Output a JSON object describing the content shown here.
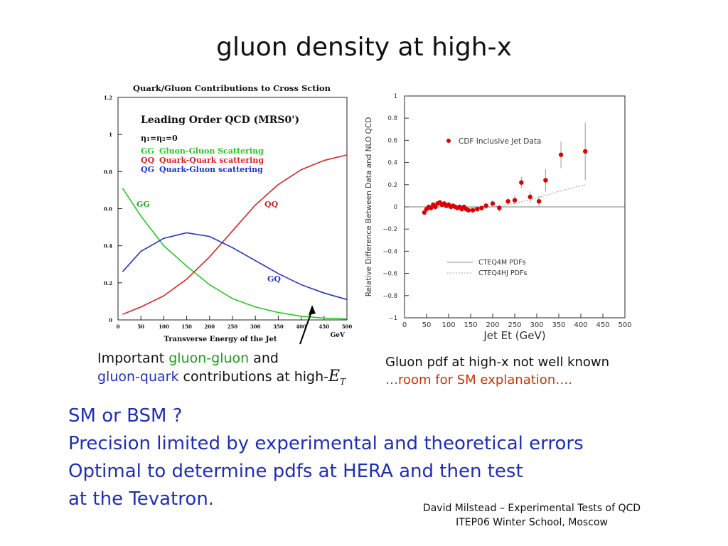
{
  "slide": {
    "title": "gluon density at high-x",
    "left_caption": {
      "part1": "Important ",
      "part2": "gluon-gluon",
      "part3": " and",
      "part4": "gluon-quark",
      "part5": " contributions at high-",
      "part6": "E",
      "part7": "T"
    },
    "right_caption": {
      "line1": "Gluon pdf at high-x not well known",
      "line2": "…room for SM explanation…."
    },
    "body_lines": [
      "SM or BSM ?",
      "Precision limited by experimental and theoretical errors",
      "Optimal to determine pdfs at HERA and then test",
      "at the Tevatron."
    ],
    "footer": {
      "line1": "David Milstead – Experimental Tests of QCD",
      "line2": "ITEP06 Winter School, Moscow"
    },
    "colors": {
      "body_text": "#1f2fb5",
      "gg": "#22cc22",
      "qq": "#dd2222",
      "qg": "#2233cc",
      "cdf_points": "#dd0000",
      "caption_red": "#cc3300"
    }
  },
  "chart_data": [
    {
      "type": "line",
      "title": "Quark/Gluon Contributions to Cross Sction",
      "xlabel": "Transverse Energy of the Jet",
      "xunit": "GeV",
      "xlim": [
        0,
        500
      ],
      "ylim": [
        0,
        1.2
      ],
      "xticks": [
        0,
        50,
        100,
        150,
        200,
        250,
        300,
        350,
        400,
        450,
        500
      ],
      "yticks": [
        0,
        0.2,
        0.4,
        0.6,
        0.8,
        1,
        1.2
      ],
      "ytick_labels": [
        "0",
        "0.2",
        "0.4",
        "0.6",
        "0.8",
        "1",
        "1.2"
      ],
      "inset": {
        "heading": "Leading Order QCD (MRS0')",
        "eta_label": "η₁=η₂=0",
        "legend": [
          {
            "code": "GG",
            "text": "Gluon-Gluon Scattering",
            "color": "#22cc22"
          },
          {
            "code": "QQ",
            "text": "Quark-Quark scattering",
            "color": "#dd2222"
          },
          {
            "code": "QG",
            "text": "Quark-Gluon scattering",
            "color": "#2233cc"
          }
        ]
      },
      "curve_labels": {
        "gg": "GG",
        "qq": "QQ",
        "qg": "GQ"
      },
      "series": [
        {
          "name": "GG",
          "color": "#22cc22",
          "x": [
            10,
            50,
            100,
            150,
            200,
            250,
            300,
            350,
            400,
            450,
            500
          ],
          "y": [
            0.71,
            0.56,
            0.4,
            0.29,
            0.19,
            0.115,
            0.07,
            0.04,
            0.02,
            0.01,
            0.005
          ]
        },
        {
          "name": "QQ",
          "color": "#dd2222",
          "x": [
            10,
            50,
            100,
            150,
            200,
            250,
            300,
            350,
            400,
            450,
            500
          ],
          "y": [
            0.03,
            0.07,
            0.13,
            0.22,
            0.34,
            0.48,
            0.62,
            0.73,
            0.81,
            0.86,
            0.89
          ]
        },
        {
          "name": "QG",
          "color": "#2233cc",
          "x": [
            10,
            50,
            100,
            150,
            200,
            250,
            300,
            350,
            400,
            450,
            500
          ],
          "y": [
            0.26,
            0.37,
            0.44,
            0.47,
            0.45,
            0.39,
            0.32,
            0.25,
            0.19,
            0.145,
            0.11
          ]
        }
      ]
    },
    {
      "type": "scatter",
      "xlabel": "Jet Et (GeV)",
      "ylabel": "Relative Difference Between Data and NLO QCD",
      "xlim": [
        0,
        500
      ],
      "ylim": [
        -1,
        1
      ],
      "xticks": [
        0,
        50,
        100,
        150,
        200,
        250,
        300,
        350,
        400,
        450,
        500
      ],
      "yticks": [
        1,
        0.8,
        0.6,
        0.4,
        0.2,
        0,
        -0.2,
        -0.4,
        -0.6,
        -0.8,
        -1
      ],
      "ytick_labels": [
        "1",
        "0.8",
        "0.6",
        "0.4",
        "0.2",
        "0",
        "−0.2",
        "−0.4",
        "−0.6",
        "−0.8",
        "−1"
      ],
      "legend": [
        {
          "name": "CDF Inclusive Jet Data",
          "kind": "marker"
        },
        {
          "name": "CTEQ4M PDFs",
          "kind": "solid"
        },
        {
          "name": "CTEQ4HJ PDFs",
          "kind": "dotted"
        }
      ],
      "series": [
        {
          "name": "CDF Inclusive Jet Data",
          "color": "#dd0000",
          "points": [
            {
              "x": 45,
              "y": -0.05,
              "err": 0.02
            },
            {
              "x": 50,
              "y": -0.02,
              "err": 0.02
            },
            {
              "x": 55,
              "y": 0.0,
              "err": 0.02
            },
            {
              "x": 60,
              "y": -0.01,
              "err": 0.02
            },
            {
              "x": 65,
              "y": 0.02,
              "err": 0.02
            },
            {
              "x": 70,
              "y": 0.0,
              "err": 0.02
            },
            {
              "x": 75,
              "y": 0.03,
              "err": 0.02
            },
            {
              "x": 80,
              "y": 0.04,
              "err": 0.02
            },
            {
              "x": 85,
              "y": 0.02,
              "err": 0.02
            },
            {
              "x": 90,
              "y": 0.03,
              "err": 0.02
            },
            {
              "x": 95,
              "y": 0.01,
              "err": 0.02
            },
            {
              "x": 100,
              "y": 0.02,
              "err": 0.02
            },
            {
              "x": 105,
              "y": 0.0,
              "err": 0.02
            },
            {
              "x": 110,
              "y": 0.01,
              "err": 0.02
            },
            {
              "x": 115,
              "y": 0.0,
              "err": 0.02
            },
            {
              "x": 120,
              "y": -0.01,
              "err": 0.02
            },
            {
              "x": 125,
              "y": 0.0,
              "err": 0.02
            },
            {
              "x": 130,
              "y": -0.02,
              "err": 0.02
            },
            {
              "x": 135,
              "y": 0.0,
              "err": 0.02
            },
            {
              "x": 140,
              "y": -0.02,
              "err": 0.02
            },
            {
              "x": 145,
              "y": -0.03,
              "err": 0.02
            },
            {
              "x": 155,
              "y": -0.03,
              "err": 0.02
            },
            {
              "x": 165,
              "y": -0.02,
              "err": 0.02
            },
            {
              "x": 175,
              "y": -0.01,
              "err": 0.02
            },
            {
              "x": 185,
              "y": 0.01,
              "err": 0.03
            },
            {
              "x": 200,
              "y": 0.03,
              "err": 0.03
            },
            {
              "x": 215,
              "y": -0.01,
              "err": 0.03
            },
            {
              "x": 235,
              "y": 0.05,
              "err": 0.03
            },
            {
              "x": 250,
              "y": 0.06,
              "err": 0.04
            },
            {
              "x": 265,
              "y": 0.22,
              "err": 0.05
            },
            {
              "x": 285,
              "y": 0.09,
              "err": 0.05
            },
            {
              "x": 305,
              "y": 0.05,
              "err": 0.05
            },
            {
              "x": 320,
              "y": 0.24,
              "err": 0.1
            },
            {
              "x": 355,
              "y": 0.47,
              "err": 0.12
            },
            {
              "x": 410,
              "y": 0.5,
              "err": 0.26
            }
          ]
        },
        {
          "name": "CTEQ4HJ PDFs",
          "style": "dotted",
          "x": [
            40,
            100,
            150,
            200,
            250,
            300,
            350,
            410
          ],
          "y": [
            0.0,
            0.0,
            -0.01,
            0.0,
            0.03,
            0.08,
            0.14,
            0.2
          ]
        }
      ]
    }
  ]
}
